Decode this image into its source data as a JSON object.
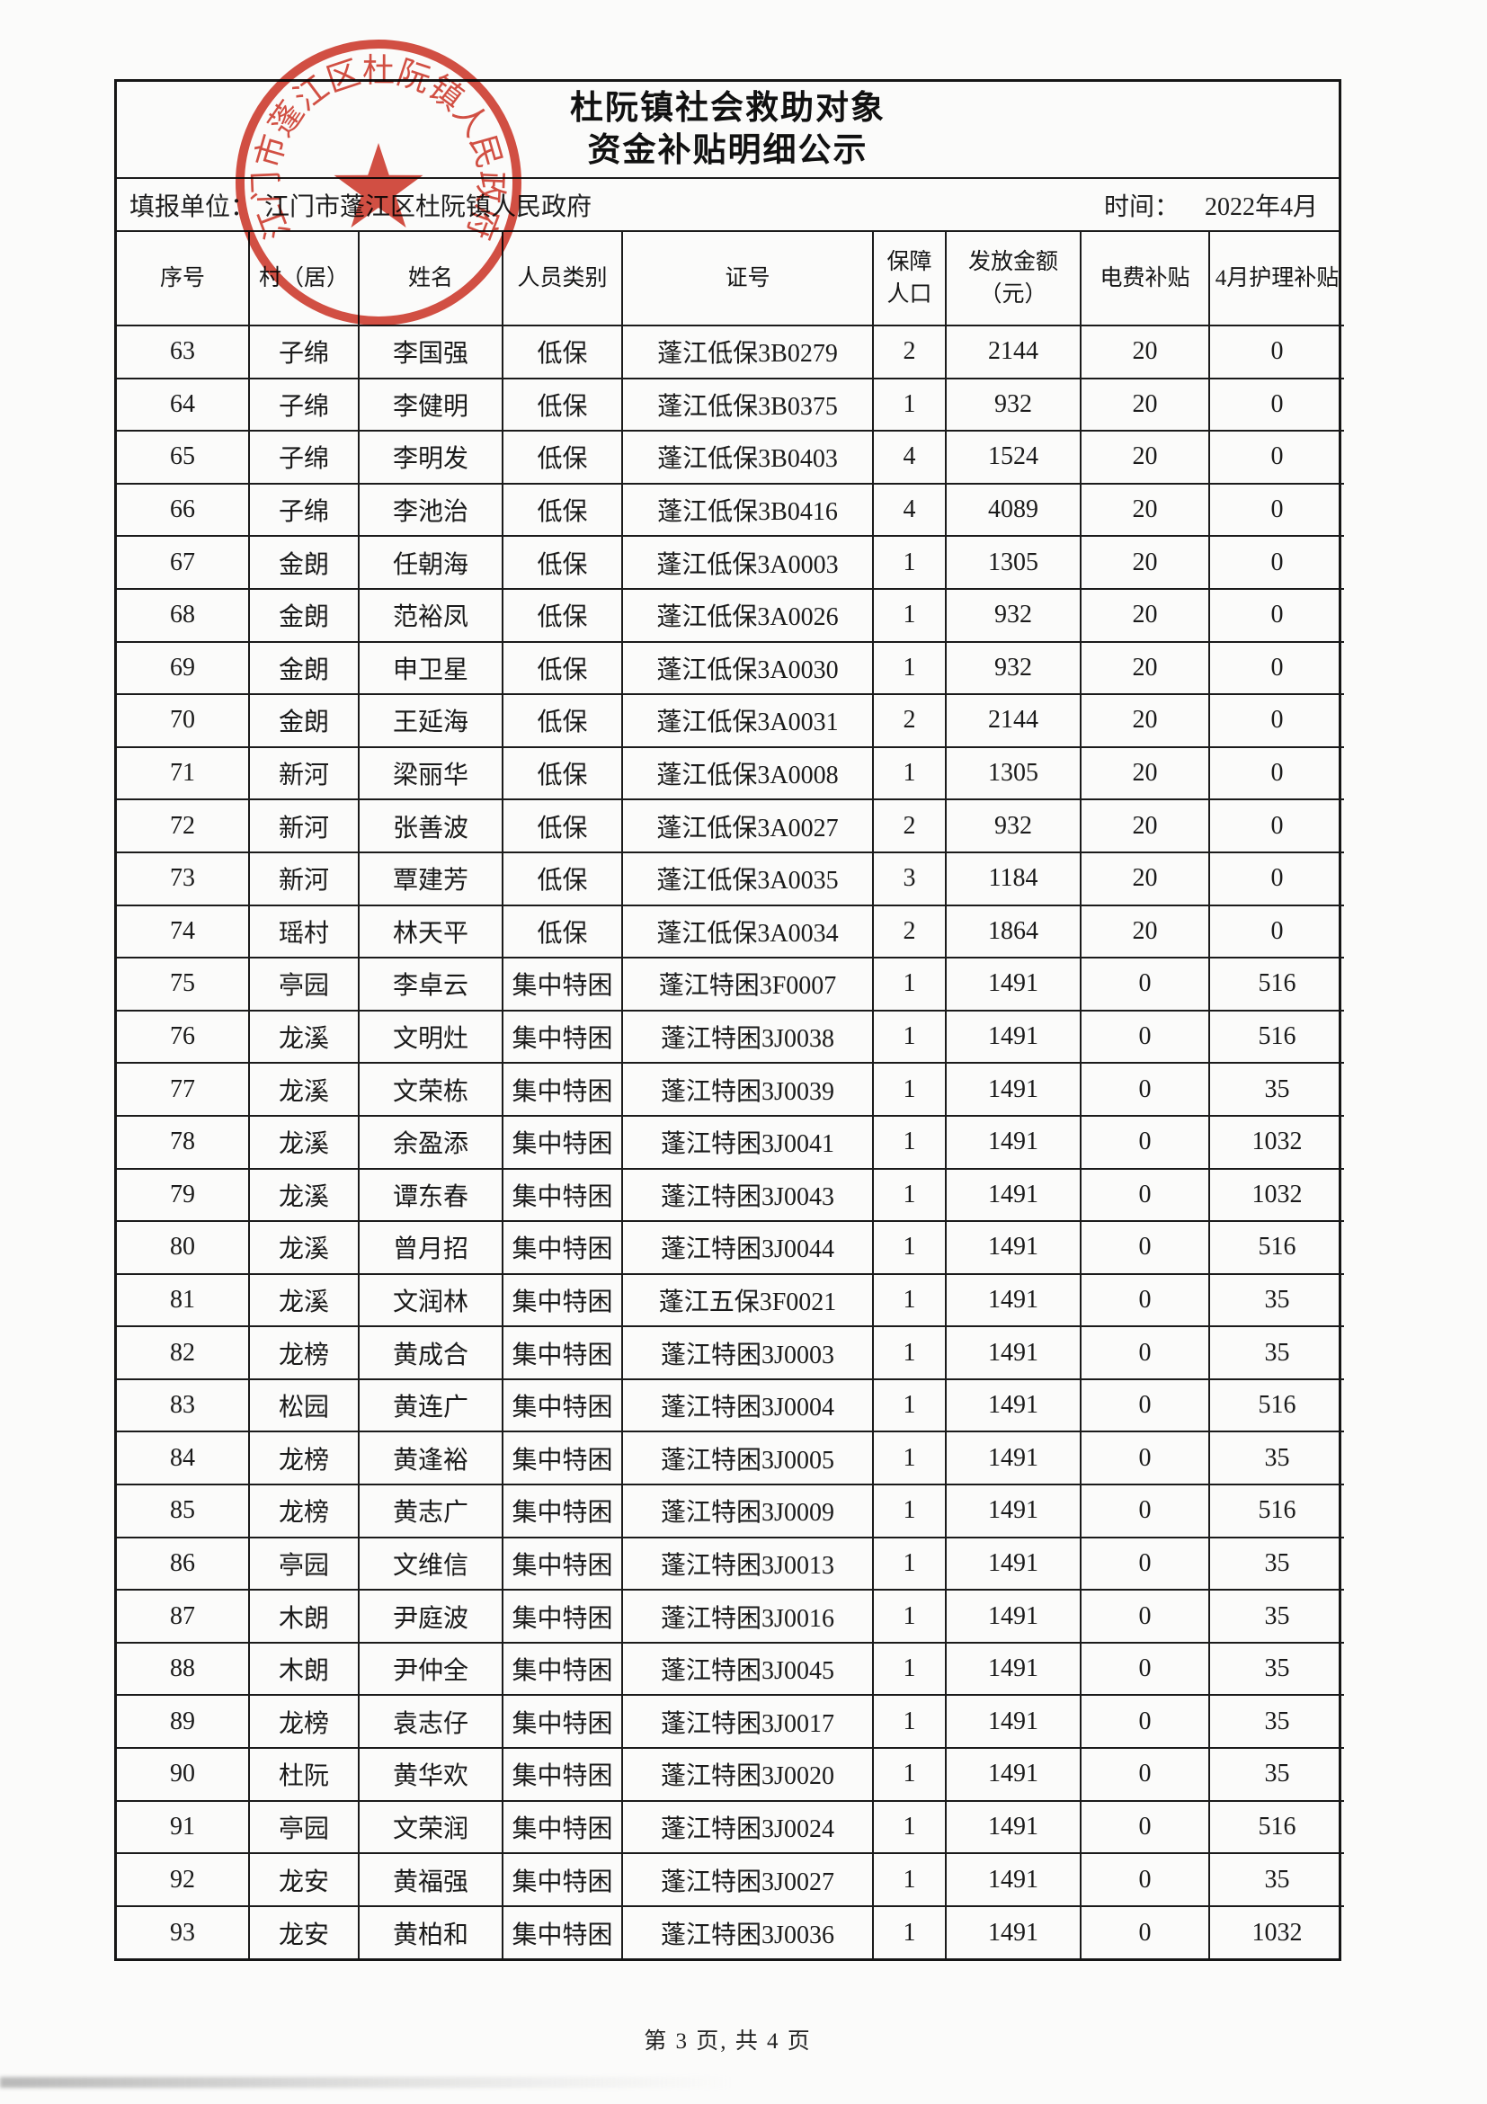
{
  "page": {
    "title_line1": "杜阮镇社会救助对象",
    "title_line2": "资金补贴明细公示",
    "filer_label": "填报单位：",
    "filer_value": "江门市蓬江区杜阮镇人民政府",
    "time_label": "时间：",
    "time_value": "2022年4月",
    "footer": "第 3 页, 共 4 页"
  },
  "stamp": {
    "text": "江门市蓬江区杜阮镇人民政府",
    "color": "#d0382a"
  },
  "table": {
    "headers": [
      "序号",
      "村（居）",
      "姓名",
      "人员类别",
      "证号",
      "保障人口",
      "发放金额（元）",
      "电费补贴",
      "4月护理补贴"
    ],
    "rows": [
      [
        "63",
        "子绵",
        "李国强",
        "低保",
        "蓬江低保3B0279",
        "2",
        "2144",
        "20",
        "0"
      ],
      [
        "64",
        "子绵",
        "李健明",
        "低保",
        "蓬江低保3B0375",
        "1",
        "932",
        "20",
        "0"
      ],
      [
        "65",
        "子绵",
        "李明发",
        "低保",
        "蓬江低保3B0403",
        "4",
        "1524",
        "20",
        "0"
      ],
      [
        "66",
        "子绵",
        "李池治",
        "低保",
        "蓬江低保3B0416",
        "4",
        "4089",
        "20",
        "0"
      ],
      [
        "67",
        "金朗",
        "任朝海",
        "低保",
        "蓬江低保3A0003",
        "1",
        "1305",
        "20",
        "0"
      ],
      [
        "68",
        "金朗",
        "范裕凤",
        "低保",
        "蓬江低保3A0026",
        "1",
        "932",
        "20",
        "0"
      ],
      [
        "69",
        "金朗",
        "申卫星",
        "低保",
        "蓬江低保3A0030",
        "1",
        "932",
        "20",
        "0"
      ],
      [
        "70",
        "金朗",
        "王延海",
        "低保",
        "蓬江低保3A0031",
        "2",
        "2144",
        "20",
        "0"
      ],
      [
        "71",
        "新河",
        "梁丽华",
        "低保",
        "蓬江低保3A0008",
        "1",
        "1305",
        "20",
        "0"
      ],
      [
        "72",
        "新河",
        "张善波",
        "低保",
        "蓬江低保3A0027",
        "2",
        "932",
        "20",
        "0"
      ],
      [
        "73",
        "新河",
        "覃建芳",
        "低保",
        "蓬江低保3A0035",
        "3",
        "1184",
        "20",
        "0"
      ],
      [
        "74",
        "瑶村",
        "林天平",
        "低保",
        "蓬江低保3A0034",
        "2",
        "1864",
        "20",
        "0"
      ],
      [
        "75",
        "亭园",
        "李卓云",
        "集中特困",
        "蓬江特困3F0007",
        "1",
        "1491",
        "0",
        "516"
      ],
      [
        "76",
        "龙溪",
        "文明灶",
        "集中特困",
        "蓬江特困3J0038",
        "1",
        "1491",
        "0",
        "516"
      ],
      [
        "77",
        "龙溪",
        "文荣栋",
        "集中特困",
        "蓬江特困3J0039",
        "1",
        "1491",
        "0",
        "35"
      ],
      [
        "78",
        "龙溪",
        "余盈添",
        "集中特困",
        "蓬江特困3J0041",
        "1",
        "1491",
        "0",
        "1032"
      ],
      [
        "79",
        "龙溪",
        "谭东春",
        "集中特困",
        "蓬江特困3J0043",
        "1",
        "1491",
        "0",
        "1032"
      ],
      [
        "80",
        "龙溪",
        "曾月招",
        "集中特困",
        "蓬江特困3J0044",
        "1",
        "1491",
        "0",
        "516"
      ],
      [
        "81",
        "龙溪",
        "文润林",
        "集中特困",
        "蓬江五保3F0021",
        "1",
        "1491",
        "0",
        "35"
      ],
      [
        "82",
        "龙榜",
        "黄成合",
        "集中特困",
        "蓬江特困3J0003",
        "1",
        "1491",
        "0",
        "35"
      ],
      [
        "83",
        "松园",
        "黄连广",
        "集中特困",
        "蓬江特困3J0004",
        "1",
        "1491",
        "0",
        "516"
      ],
      [
        "84",
        "龙榜",
        "黄逢裕",
        "集中特困",
        "蓬江特困3J0005",
        "1",
        "1491",
        "0",
        "35"
      ],
      [
        "85",
        "龙榜",
        "黄志广",
        "集中特困",
        "蓬江特困3J0009",
        "1",
        "1491",
        "0",
        "516"
      ],
      [
        "86",
        "亭园",
        "文维信",
        "集中特困",
        "蓬江特困3J0013",
        "1",
        "1491",
        "0",
        "35"
      ],
      [
        "87",
        "木朗",
        "尹庭波",
        "集中特困",
        "蓬江特困3J0016",
        "1",
        "1491",
        "0",
        "35"
      ],
      [
        "88",
        "木朗",
        "尹仲全",
        "集中特困",
        "蓬江特困3J0045",
        "1",
        "1491",
        "0",
        "35"
      ],
      [
        "89",
        "龙榜",
        "袁志仔",
        "集中特困",
        "蓬江特困3J0017",
        "1",
        "1491",
        "0",
        "35"
      ],
      [
        "90",
        "杜阮",
        "黄华欢",
        "集中特困",
        "蓬江特困3J0020",
        "1",
        "1491",
        "0",
        "35"
      ],
      [
        "91",
        "亭园",
        "文荣润",
        "集中特困",
        "蓬江特困3J0024",
        "1",
        "1491",
        "0",
        "516"
      ],
      [
        "92",
        "龙安",
        "黄福强",
        "集中特困",
        "蓬江特困3J0027",
        "1",
        "1491",
        "0",
        "35"
      ],
      [
        "93",
        "龙安",
        "黄柏和",
        "集中特困",
        "蓬江特困3J0036",
        "1",
        "1491",
        "0",
        "1032"
      ]
    ]
  }
}
